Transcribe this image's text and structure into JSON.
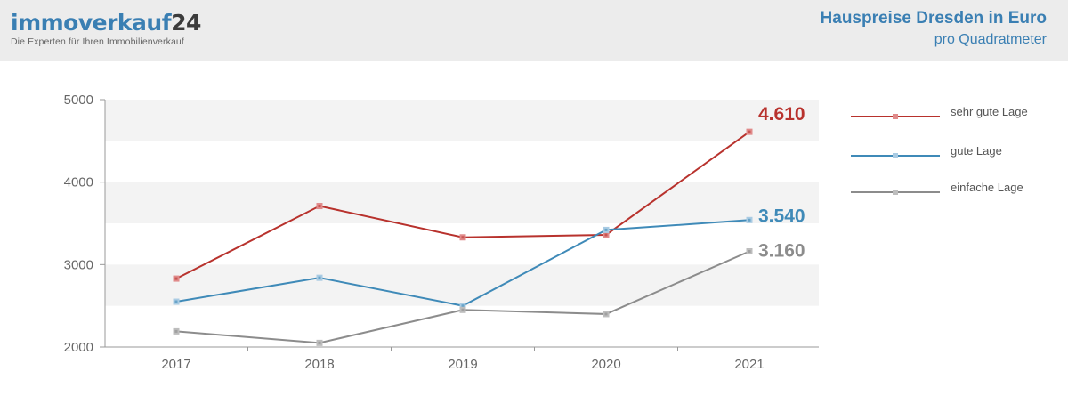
{
  "header": {
    "logo_main": "immoverkauf",
    "logo_num": "24",
    "tagline": "Die Experten für Ihren Immobilienverkauf",
    "title": "Hauspreise Dresden in Euro",
    "subtitle": "pro Quadratmeter"
  },
  "colors": {
    "header_bg": "#ececec",
    "brand_blue": "#3a7fb3",
    "band": "#f3f3f3"
  },
  "chart_data": {
    "type": "line",
    "title": "Hauspreise Dresden in Euro",
    "subtitle": "pro Quadratmeter",
    "categories": [
      "2017",
      "2018",
      "2019",
      "2020",
      "2021"
    ],
    "ylim": [
      2000,
      5000
    ],
    "yticks": [
      "2000",
      "3000",
      "4000",
      "5000"
    ],
    "legend_position": "right",
    "grid": "horizontal bands",
    "series": [
      {
        "name": "sehr gute Lage",
        "color": "#b8322d",
        "marker": "#e08a8a",
        "values": [
          2830,
          3710,
          3330,
          3360,
          4610
        ],
        "end_label": "4.610"
      },
      {
        "name": "gute Lage",
        "color": "#3f8ab8",
        "marker": "#a9cbe3",
        "values": [
          2550,
          2840,
          2500,
          3420,
          3540
        ],
        "end_label": "3.540"
      },
      {
        "name": "einfache Lage",
        "color": "#8c8c8c",
        "marker": "#bdbdbd",
        "values": [
          2190,
          2050,
          2450,
          2400,
          3160
        ],
        "end_label": "3.160"
      }
    ]
  }
}
